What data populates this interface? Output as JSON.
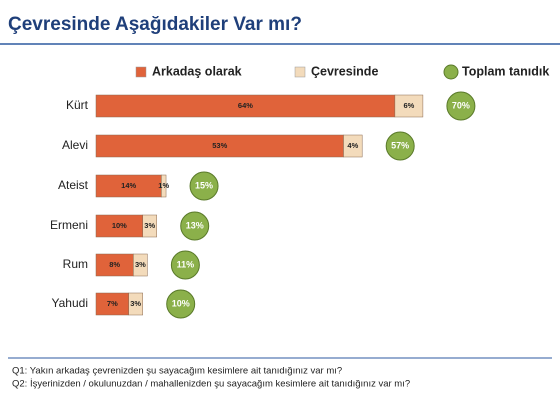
{
  "chart_data": {
    "type": "bar",
    "stacked": true,
    "orientation": "horizontal",
    "title": "Çevresinde Aşağıdakiler Var mı?",
    "categories": [
      "Kürt",
      "Alevi",
      "Ateist",
      "Ermeni",
      "Rum",
      "Yahudi"
    ],
    "series": [
      {
        "name": "Arkadaş olarak",
        "color": "#e0633a",
        "values": [
          64,
          53,
          14,
          10,
          8,
          7
        ],
        "value_labels": [
          "64%",
          "53%",
          "14%",
          "10%",
          "8%",
          "7%"
        ]
      },
      {
        "name": "Çevresinde",
        "color": "#f3dbbb",
        "values": [
          6,
          4,
          1,
          3,
          3,
          3
        ],
        "value_labels": [
          "6%",
          "4%",
          "1%",
          "3%",
          "3%",
          "3%"
        ]
      },
      {
        "name": "Toplam tanıdık",
        "type": "circle",
        "color": "#8bb04a",
        "values": [
          70,
          57,
          15,
          13,
          11,
          10
        ],
        "value_labels": [
          "70%",
          "57%",
          "15%",
          "13%",
          "11%",
          "10%"
        ]
      }
    ],
    "notes": [
      "Q1: Yakın arkadaş çevrenizden şu sayacağım kesimlere ait tanıdığınız var mı?",
      "Q2: İşyerinizden / okulunuzdan / mahallenizden şu sayacağım kesimlere ait tanıdığınız var mı?"
    ]
  }
}
